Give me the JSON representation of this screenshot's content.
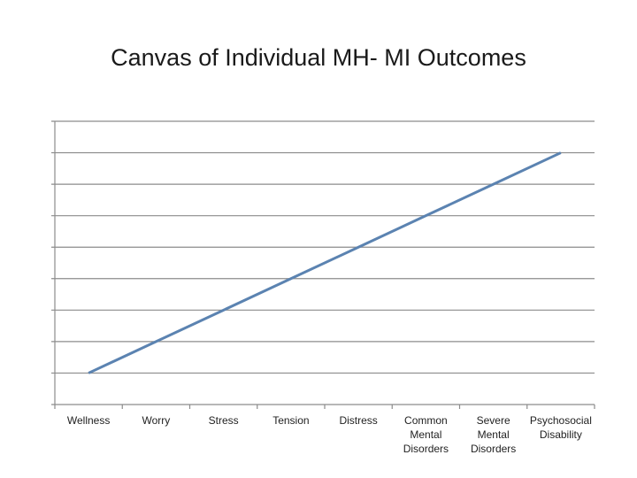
{
  "title": "Canvas of Individual MH- MI Outcomes",
  "chart_data": {
    "type": "line",
    "title": "Canvas of Individual MH- MI Outcomes",
    "categories": [
      [
        "Wellness"
      ],
      [
        "Worry"
      ],
      [
        "Stress"
      ],
      [
        "Tension"
      ],
      [
        "Distress"
      ],
      [
        "Common",
        "Mental",
        "Disorders"
      ],
      [
        "Severe",
        "Mental",
        "Disorders"
      ],
      [
        "Psychosocial",
        "Disability"
      ]
    ],
    "series": [
      {
        "values": [
          1,
          2,
          3,
          4,
          5,
          6,
          7,
          8
        ]
      }
    ],
    "ylim": [
      0,
      9
    ],
    "y_gridlines": 9,
    "grid": true,
    "line_color": "#5b83b1",
    "grid_color": "#8c8c8c"
  }
}
